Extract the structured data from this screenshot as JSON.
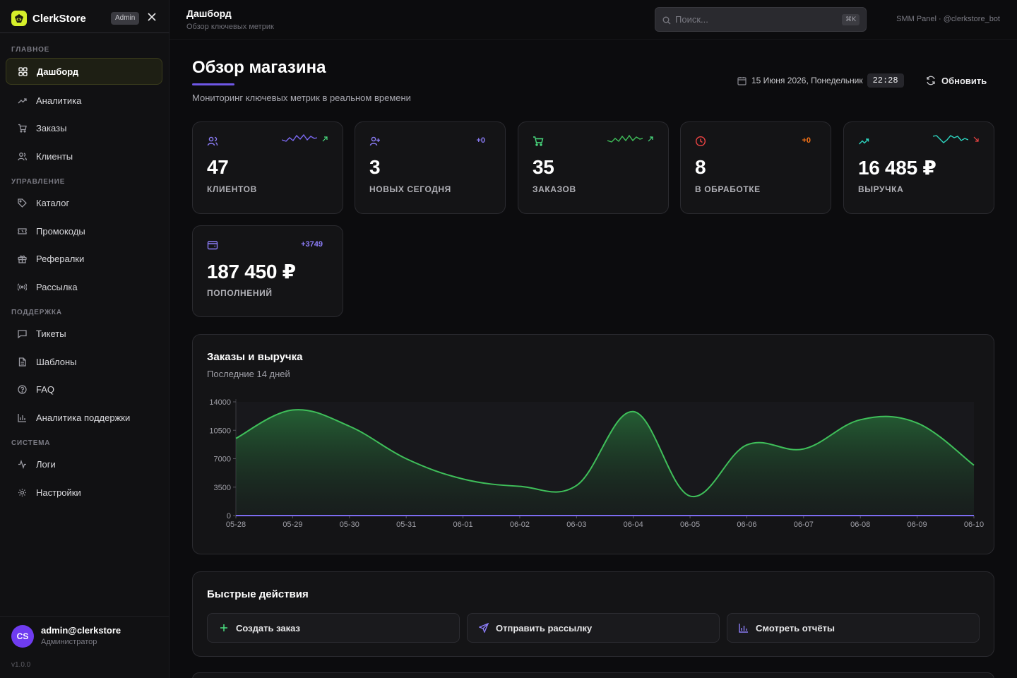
{
  "brand": {
    "name": "ClerkStore",
    "badge": "Admin"
  },
  "sidebar": {
    "sections": [
      {
        "label": "ГЛАВНОЕ"
      },
      {
        "label": "УПРАВЛЕНИЕ"
      },
      {
        "label": "ПОДДЕРЖКА"
      },
      {
        "label": "СИСТЕМА"
      }
    ],
    "items": [
      {
        "label": "Дашборд",
        "icon": "grid-icon",
        "active": true
      },
      {
        "label": "Аналитика",
        "icon": "trend-icon"
      },
      {
        "label": "Заказы",
        "icon": "cart-icon"
      },
      {
        "label": "Клиенты",
        "icon": "users-icon"
      },
      {
        "label": "Каталог",
        "icon": "tag-icon"
      },
      {
        "label": "Промокоды",
        "icon": "ticket-icon"
      },
      {
        "label": "Рефералки",
        "icon": "gift-icon"
      },
      {
        "label": "Рассылка",
        "icon": "broadcast-icon"
      },
      {
        "label": "Тикеты",
        "icon": "message-icon"
      },
      {
        "label": "Шаблоны",
        "icon": "file-icon"
      },
      {
        "label": "FAQ",
        "icon": "help-circle-icon"
      },
      {
        "label": "Аналитика поддержки",
        "icon": "bar-chart-icon"
      },
      {
        "label": "Логи",
        "icon": "activity-icon"
      },
      {
        "label": "Настройки",
        "icon": "gear-icon"
      }
    ]
  },
  "user": {
    "initials": "CS",
    "name": "admin@clerkstore",
    "role": "Администратор"
  },
  "version": "v1.0.0",
  "topbar": {
    "title": "Дашборд",
    "subtitle": "Обзор ключевых метрик",
    "search_placeholder": "Поиск...",
    "search_shortcut": "⌘K",
    "right_text": "SMM Panel · @clerkstore_bot"
  },
  "header": {
    "title": "Обзор магазина",
    "subtitle": "Мониторинг ключевых метрик в реальном времени",
    "date": "15 Июня 2026, Понедельник",
    "time": "22:28",
    "refresh_label": "Обновить"
  },
  "stats": [
    {
      "value": "47",
      "label": "КЛИЕНТОВ",
      "icon": "users-icon",
      "icon_color": "#8b7cf6",
      "spark_color": "#7a68f0",
      "trend": "up",
      "trend_color": "#4ade80"
    },
    {
      "value": "3",
      "label": "НОВЫХ СЕГОДНЯ",
      "icon": "user-plus-icon",
      "icon_color": "#8b7cf6",
      "delta": "+0",
      "delta_color": "#8b7cf6"
    },
    {
      "value": "35",
      "label": "ЗАКАЗОВ",
      "icon": "cart-icon",
      "icon_color": "#4ade80",
      "spark_color": "#3fbf5a",
      "trend": "up",
      "trend_color": "#4ade80"
    },
    {
      "value": "8",
      "label": "В ОБРАБОТКЕ",
      "icon": "clock-icon",
      "icon_color": "#ef4444",
      "delta": "+0",
      "delta_color": "#f97316"
    },
    {
      "value": "16 485 ₽",
      "label": "ВЫРУЧКА",
      "icon": "trend-up-icon",
      "icon_color": "#2dd4bf",
      "spark_color": "#2dd4bf",
      "trend": "down",
      "trend_color": "#ef4444"
    },
    {
      "value": "187 450 ₽",
      "label": "ПОПОЛНЕНИЙ",
      "icon": "wallet-icon",
      "icon_color": "#8b7cf6",
      "delta": "+3749",
      "delta_color": "#8b7cf6"
    }
  ],
  "chart_panel": {
    "title": "Заказы и выручка",
    "subtitle": "Последние 14 дней"
  },
  "chart_data": {
    "type": "area",
    "categories": [
      "05-28",
      "05-29",
      "05-30",
      "05-31",
      "06-01",
      "06-02",
      "06-03",
      "06-04",
      "06-05",
      "06-06",
      "06-07",
      "06-08",
      "06-09",
      "06-10"
    ],
    "series": [
      {
        "values": [
          9500,
          13000,
          11000,
          7000,
          4500,
          3600,
          3700,
          12800,
          2400,
          8700,
          8200,
          11800,
          11400,
          6200
        ],
        "color": "#3fbf5a"
      },
      {
        "values": [
          0,
          0,
          0,
          0,
          0,
          0,
          0,
          0,
          0,
          0,
          0,
          0,
          0,
          0
        ],
        "color": "#7c6cf0"
      }
    ],
    "yticks": [
      0,
      3500,
      7000,
      10500,
      14000
    ],
    "ylim": [
      0,
      14000
    ]
  },
  "quick_actions": {
    "title": "Быстрые действия",
    "items": [
      {
        "label": "Создать заказ",
        "icon": "plus-icon",
        "color": "#4ade80"
      },
      {
        "label": "Отправить рассылку",
        "icon": "send-icon",
        "color": "#8b7cf6"
      },
      {
        "label": "Смотреть отчёты",
        "icon": "bar-chart-icon",
        "color": "#8b7cf6"
      }
    ]
  }
}
